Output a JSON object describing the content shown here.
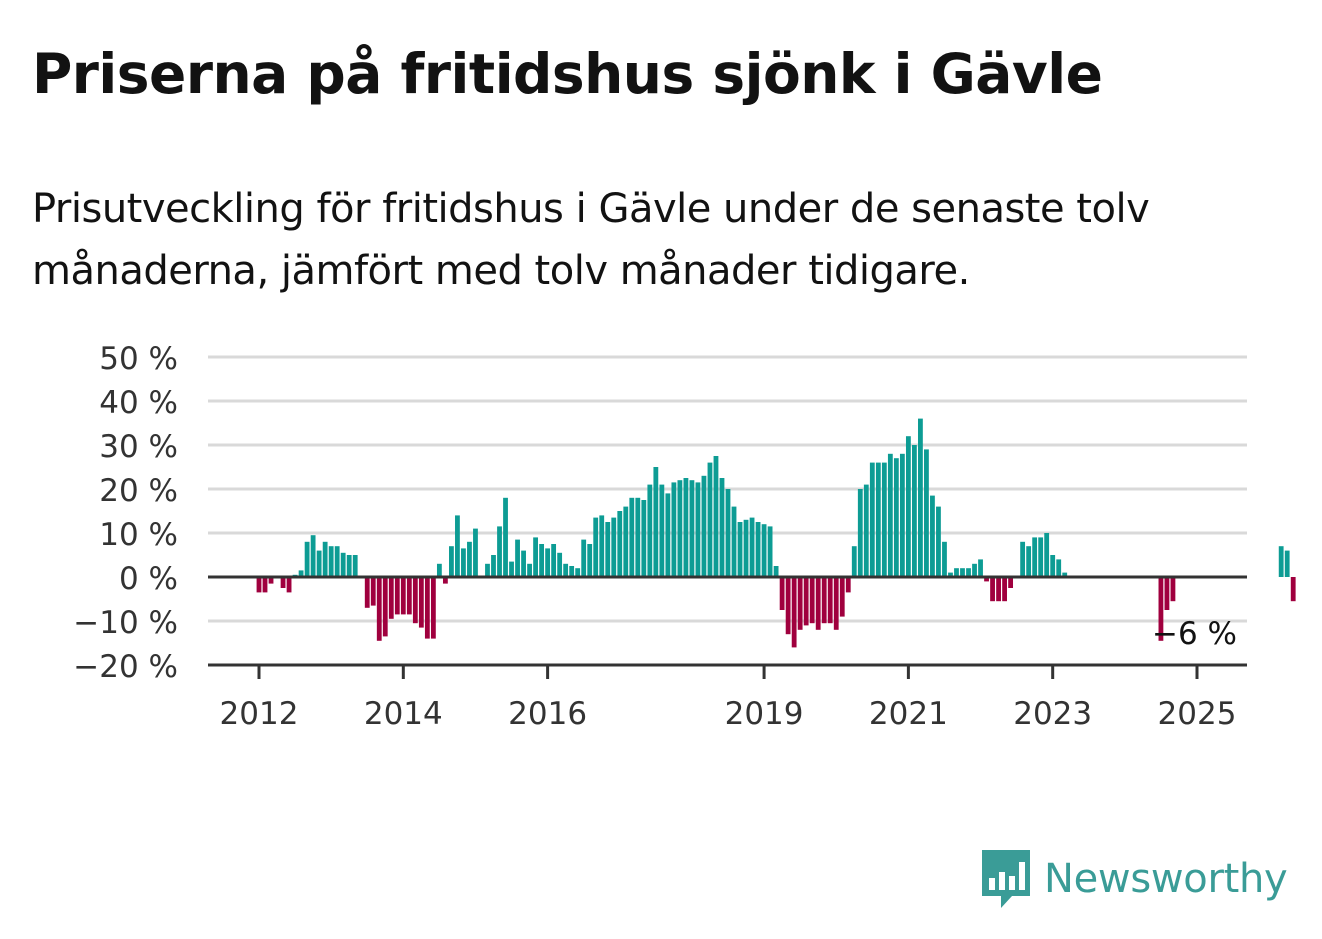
{
  "title": "Priserna på fritidshus sjönk i Gävle",
  "subtitle": "Prisutveckling för fritidshus i Gävle under de senaste tolv månaderna, jämfört med tolv månader tidigare.",
  "brand": {
    "name": "Newsworthy",
    "color": "#3a9c97",
    "icon": "newsworthy-chart-bubble-icon"
  },
  "colors": {
    "positive": "#0d9c94",
    "negative": "#a0003e",
    "grid": "#d9d9d9",
    "axis": "#333333"
  },
  "chart_data": {
    "type": "bar",
    "title": "Priserna på fritidshus sjönk i Gävle",
    "xlabel": "",
    "ylabel": "",
    "y_unit": "%",
    "ylim": [
      -20,
      50
    ],
    "y_ticks": [
      50,
      40,
      30,
      20,
      10,
      0,
      -10,
      -20
    ],
    "y_tick_labels": [
      "50 %",
      "40 %",
      "30 %",
      "20 %",
      "10 %",
      "0 %",
      "−10 %",
      "−20 %"
    ],
    "x_tick_labels": [
      "2012",
      "2014",
      "2016",
      "2019",
      "2021",
      "2023",
      "2025"
    ],
    "x_tick_positions": [
      "2012-01",
      "2014-01",
      "2016-01",
      "2019-01",
      "2021-01",
      "2023-01",
      "2025-01"
    ],
    "grid": true,
    "start_month": "2011-04",
    "end_month": "2025-12",
    "values": [
      null,
      null,
      null,
      null,
      null,
      null,
      null,
      null,
      null,
      -3.5,
      -3.5,
      -1.5,
      null,
      -2.5,
      -3.5,
      0.5,
      1.5,
      8,
      9.5,
      6,
      8,
      7,
      7,
      5.5,
      5,
      5,
      null,
      -7,
      -6.5,
      -14.5,
      -13.5,
      -9.5,
      -8.5,
      -8.5,
      -8.5,
      -10.5,
      -11.5,
      -14,
      -14,
      3,
      -1.5,
      7,
      14,
      6.5,
      8,
      11,
      null,
      3,
      5,
      11.5,
      18,
      3.5,
      8.5,
      6,
      3,
      9,
      7.5,
      6.5,
      7.5,
      5.5,
      3,
      2.5,
      2,
      8.5,
      7.5,
      13.5,
      14,
      12.5,
      13.5,
      15,
      16,
      18,
      18,
      17.5,
      21,
      25,
      21,
      19,
      21.5,
      22,
      22.5,
      22,
      21.5,
      23,
      26,
      27.5,
      22.5,
      20,
      16,
      12.5,
      13,
      13.5,
      12.5,
      12,
      11.5,
      2.5,
      -7.5,
      -13,
      -16,
      -12,
      -11,
      -10.5,
      -12,
      -10.5,
      -10.5,
      -12,
      -9,
      -3.5,
      7,
      20,
      21,
      26,
      26,
      26,
      28,
      27,
      28,
      32,
      30,
      36,
      29,
      18.5,
      16,
      8,
      1,
      2,
      2,
      2,
      3,
      4,
      -1,
      -5.5,
      -5.5,
      -5.5,
      -2.5,
      null,
      8,
      7,
      9,
      9,
      10,
      5,
      4,
      1,
      null,
      null,
      null,
      null,
      null,
      null,
      null,
      null,
      null,
      null,
      null,
      null,
      null,
      null,
      null,
      -14.5,
      -7.5,
      -5.5,
      null,
      null,
      null,
      null,
      null,
      null,
      null,
      null,
      null,
      null,
      null,
      null,
      null,
      null,
      null,
      null,
      null,
      7,
      6,
      -5.5
    ],
    "annotation": {
      "label": "−6 %",
      "value": -6
    }
  }
}
